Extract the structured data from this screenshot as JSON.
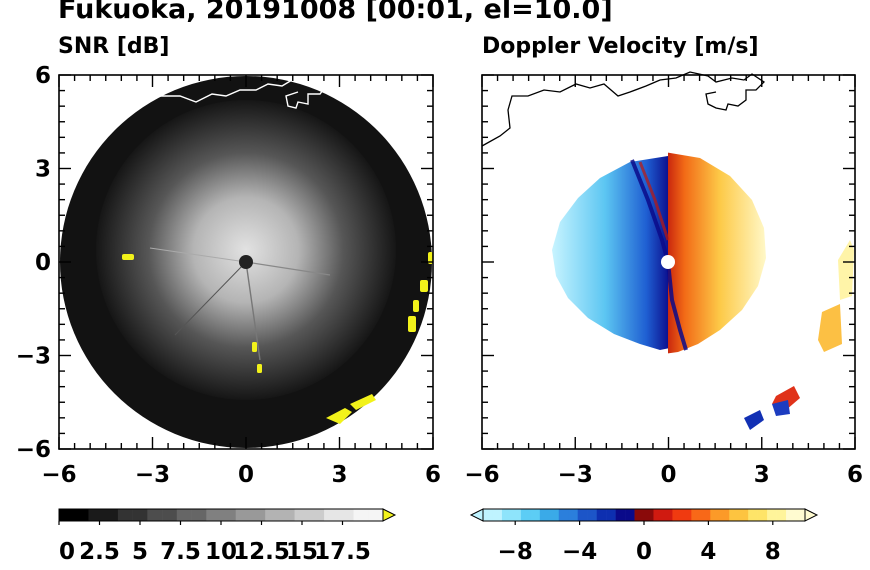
{
  "title": "Fukuoka, 20191008 [00:01, el=10.0]",
  "chart_data": [
    {
      "type": "heatmap",
      "subtitle": "SNR [dB]",
      "xlim": [
        -6,
        6
      ],
      "ylim": [
        -6,
        6
      ],
      "x_ticks": [
        "-6",
        "-3",
        "0",
        "3",
        "6"
      ],
      "y_ticks": [
        "6",
        "3",
        "0",
        "-3",
        "-6"
      ],
      "colorbar": {
        "ticks": [
          "0",
          "2.5",
          "5",
          "7.5",
          "10",
          "12.5",
          "15",
          "17.5"
        ],
        "range": [
          0,
          20
        ],
        "extend": "max",
        "colors": [
          "#000000",
          "#1a1a1a",
          "#333333",
          "#4d4d4d",
          "#666666",
          "#808080",
          "#999999",
          "#b3b3b3",
          "#cccccc",
          "#e6e6e6",
          "#f5f5f5"
        ],
        "over_color": "#f2f21a"
      },
      "coverage_radius": 6
    },
    {
      "type": "heatmap",
      "subtitle": "Doppler Velocity [m/s]",
      "xlim": [
        -6,
        6
      ],
      "ylim": [
        -6,
        6
      ],
      "x_ticks": [
        "-6",
        "-3",
        "0",
        "3",
        "6"
      ],
      "y_ticks": [
        "6",
        "3",
        "0",
        "-3",
        "-6"
      ],
      "colorbar": {
        "ticks": [
          "−8",
          "−4",
          "0",
          "4",
          "8"
        ],
        "range": [
          -10,
          10
        ],
        "extend": "both",
        "colors": [
          "#bff3ff",
          "#8ee4fb",
          "#5ccdf5",
          "#3aaae8",
          "#2b7fdc",
          "#1c55c8",
          "#0d2fb0",
          "#0a0a8a",
          "#8a0a0a",
          "#d01a10",
          "#f03a10",
          "#f86818",
          "#fc9a28",
          "#fdc440",
          "#fee468",
          "#fff49a",
          "#fffbd0"
        ]
      }
    }
  ]
}
